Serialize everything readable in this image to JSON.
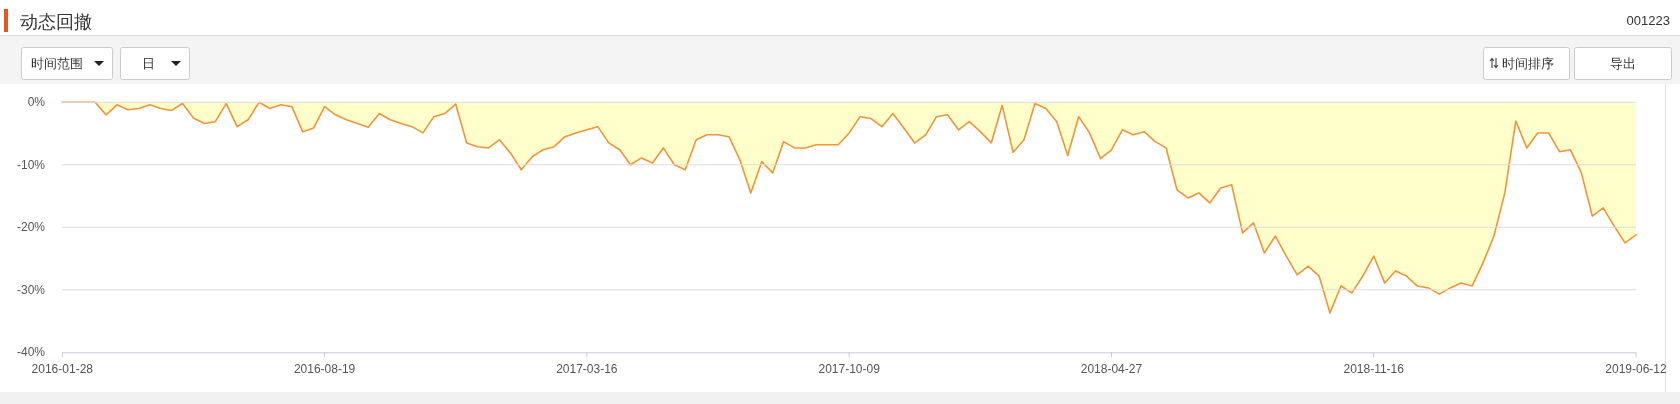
{
  "chart_data": {
    "type": "area",
    "title": "动态回撤",
    "subtitle": "001223",
    "annotations": [
      "时间范围",
      "日",
      "时间排序",
      "导出"
    ],
    "categories": [
      "2016-01-28",
      null,
      null,
      null,
      null,
      null,
      null,
      null,
      null,
      null,
      null,
      null,
      null,
      null,
      null,
      null,
      null,
      null,
      null,
      null,
      null,
      null,
      null,
      null,
      "2016-08-19",
      null,
      null,
      null,
      null,
      null,
      null,
      null,
      null,
      null,
      null,
      null,
      null,
      null,
      null,
      null,
      null,
      null,
      null,
      null,
      null,
      null,
      null,
      null,
      "2017-03-16",
      null,
      null,
      null,
      null,
      null,
      null,
      null,
      null,
      null,
      null,
      null,
      null,
      null,
      null,
      null,
      null,
      null,
      null,
      null,
      null,
      null,
      null,
      null,
      "2017-10-09",
      null,
      null,
      null,
      null,
      null,
      null,
      null,
      null,
      null,
      null,
      null,
      null,
      null,
      null,
      null,
      null,
      null,
      null,
      null,
      null,
      null,
      null,
      null,
      "2018-04-27",
      null,
      null,
      null,
      null,
      null,
      null,
      null,
      null,
      null,
      null,
      null,
      null,
      null,
      null,
      null,
      null,
      null,
      null,
      null,
      null,
      null,
      null,
      null,
      "2018-11-16",
      null,
      null,
      null,
      null,
      null,
      null,
      null,
      null,
      null,
      null,
      null,
      null,
      null,
      null,
      null,
      null,
      null,
      null,
      null,
      null,
      null,
      null,
      null,
      "2019-06-12"
    ],
    "series": [
      {
        "color": "#ffffcc",
        "values": [
          0,
          0,
          0,
          0,
          -2.0,
          -0.4,
          -1.2,
          -1.0,
          -0.4,
          -1.0,
          -1.3,
          -0.2,
          -2.5,
          -3.4,
          -3.1,
          -0.2,
          -3.9,
          -2.8,
          0,
          -1.0,
          -0.4,
          -0.7,
          -4.7,
          -4.1,
          -0.7,
          -2.0,
          -2.8,
          -3.4,
          -4.0,
          -1.8,
          -2.8,
          -3.4,
          -3.9,
          -4.9,
          -2.3,
          -1.8,
          -0.3,
          -6.5,
          -7.1,
          -7.3,
          -6.0,
          -8.1,
          -10.8,
          -8.7,
          -7.6,
          -7.1,
          -5.5,
          -4.9,
          -4.4,
          -3.9,
          -6.5,
          -7.6,
          -10.0,
          -8.9,
          -9.7,
          -7.3,
          -10.0,
          -10.8,
          -6.0,
          -5.2,
          -5.2,
          -5.5,
          -9.2,
          -14.5,
          -9.5,
          -11.3,
          -6.3,
          -7.3,
          -7.3,
          -6.8,
          -6.8,
          -6.8,
          -4.9,
          -2.3,
          -2.6,
          -3.9,
          -1.8,
          -4.1,
          -6.5,
          -5.2,
          -2.3,
          -2.0,
          -4.4,
          -3.1,
          -4.7,
          -6.5,
          -0.5,
          -8.0,
          -6.0,
          -0.2,
          -1.0,
          -3.1,
          -8.5,
          -2.3,
          -4.9,
          -9.0,
          -7.6,
          -4.4,
          -5.2,
          -4.7,
          -6.3,
          -7.3,
          -14.0,
          -15.3,
          -14.5,
          -16.1,
          -13.7,
          -13.2,
          -20.9,
          -19.3,
          -24.1,
          -21.4,
          -24.6,
          -27.6,
          -26.2,
          -27.8,
          -33.7,
          -29.4,
          -30.5,
          -27.8,
          -24.6,
          -28.9,
          -27.0,
          -27.8,
          -29.4,
          -29.7,
          -30.7,
          -29.7,
          -28.9,
          -29.4,
          -25.7,
          -21.4,
          -14.5,
          -3.0,
          -7.3,
          -4.9,
          -4.9,
          -7.9,
          -7.6,
          -11.3,
          -18.2,
          -16.9,
          -19.8,
          -22.5,
          -21.2
        ]
      }
    ],
    "ylim": [
      -40,
      0
    ],
    "yticks": [
      {
        "value": 0,
        "label": "0%"
      },
      {
        "value": -10,
        "label": "-10%"
      },
      {
        "value": -20,
        "label": "-20%"
      },
      {
        "value": -30,
        "label": "-30%"
      },
      {
        "value": -40,
        "label": "-40%"
      }
    ],
    "grid": "y"
  }
}
